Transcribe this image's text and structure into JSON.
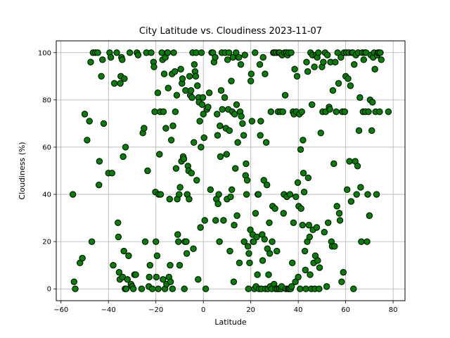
{
  "chart_data": {
    "type": "scatter",
    "title": "City Latitude vs. Cloudiness 2023-11-07",
    "xlabel": "Latitude",
    "ylabel": "Cloudiness (%)",
    "xlim": [
      -62,
      85
    ],
    "ylim": [
      -5,
      105
    ],
    "x_ticks": [
      -60,
      -40,
      -20,
      0,
      20,
      40,
      60,
      80
    ],
    "y_ticks": [
      0,
      20,
      40,
      60,
      80,
      100
    ],
    "grid": true,
    "marker_fill": "#008000",
    "marker_edge": "#000000",
    "points": [
      [
        -55,
        40
      ],
      [
        -54.5,
        3
      ],
      [
        -54,
        0
      ],
      [
        -52,
        11
      ],
      [
        -51,
        13
      ],
      [
        -50,
        74
      ],
      [
        -49,
        63
      ],
      [
        -48,
        71
      ],
      [
        -47.5,
        96
      ],
      [
        -47,
        20
      ],
      [
        -46.5,
        100
      ],
      [
        -45.5,
        100
      ],
      [
        -44.5,
        100
      ],
      [
        -44,
        44
      ],
      [
        -43.8,
        54
      ],
      [
        -43,
        90
      ],
      [
        -42.5,
        97
      ],
      [
        -42,
        70
      ],
      [
        -40,
        49
      ],
      [
        -39.5,
        100
      ],
      [
        -39,
        98
      ],
      [
        -38.5,
        49
      ],
      [
        -38,
        10
      ],
      [
        -37.5,
        87
      ],
      [
        -36.5,
        100
      ],
      [
        -36,
        28
      ],
      [
        -35.8,
        22
      ],
      [
        -35.5,
        7
      ],
      [
        -35.2,
        4
      ],
      [
        -35,
        87
      ],
      [
        -34.8,
        90
      ],
      [
        -34.5,
        98
      ],
      [
        -34.2,
        97
      ],
      [
        -34,
        5
      ],
      [
        -33.8,
        56
      ],
      [
        -33.5,
        16
      ],
      [
        -33.3,
        89
      ],
      [
        -33,
        0
      ],
      [
        -32.8,
        60
      ],
      [
        -32.5,
        0
      ],
      [
        -32,
        4
      ],
      [
        -31.5,
        14
      ],
      [
        -31,
        100
      ],
      [
        -30.5,
        2
      ],
      [
        -30,
        1
      ],
      [
        -29.5,
        0
      ],
      [
        -29,
        6
      ],
      [
        -28.5,
        6
      ],
      [
        -28,
        100
      ],
      [
        -27.5,
        99
      ],
      [
        -26,
        0
      ],
      [
        -25.5,
        66
      ],
      [
        -25,
        68
      ],
      [
        -24.5,
        20
      ],
      [
        -24,
        100
      ],
      [
        -23.5,
        50
      ],
      [
        -23,
        1
      ],
      [
        -22.8,
        5
      ],
      [
        -22.5,
        10
      ],
      [
        -22,
        100
      ],
      [
        -21.5,
        0
      ],
      [
        -21,
        96
      ],
      [
        -20.8,
        94
      ],
      [
        -20.5,
        75
      ],
      [
        -20.2,
        41
      ],
      [
        -20,
        20
      ],
      [
        -19.8,
        5
      ],
      [
        -19.5,
        14
      ],
      [
        -19.2,
        83
      ],
      [
        -19,
        0
      ],
      [
        -18.8,
        40
      ],
      [
        -18.5,
        57
      ],
      [
        -18.2,
        75
      ],
      [
        -18,
        40
      ],
      [
        -17.5,
        100
      ],
      [
        -17.2,
        97
      ],
      [
        -17,
        4
      ],
      [
        -16.8,
        75
      ],
      [
        -16.5,
        91
      ],
      [
        -16.2,
        0
      ],
      [
        -16,
        98
      ],
      [
        -15.8,
        68
      ],
      [
        -15.5,
        2
      ],
      [
        -15.2,
        100
      ],
      [
        -15,
        100
      ],
      [
        -14.8,
        85
      ],
      [
        -14.5,
        5
      ],
      [
        -14.2,
        38
      ],
      [
        -14,
        10
      ],
      [
        -13.8,
        3
      ],
      [
        -13.5,
        63
      ],
      [
        -13.2,
        91
      ],
      [
        -13,
        0
      ],
      [
        -12.8,
        69
      ],
      [
        -12.5,
        100
      ],
      [
        -12,
        92
      ],
      [
        -11.8,
        75
      ],
      [
        -11.5,
        51
      ],
      [
        -11.2,
        82
      ],
      [
        -11,
        38
      ],
      [
        -10.8,
        23
      ],
      [
        -10.5,
        20
      ],
      [
        -10.2,
        40
      ],
      [
        -10,
        10
      ],
      [
        -9.8,
        43
      ],
      [
        -9.5,
        93
      ],
      [
        -9.2,
        54
      ],
      [
        -9,
        87
      ],
      [
        -8.8,
        89
      ],
      [
        -8.5,
        56
      ],
      [
        -8.2,
        55
      ],
      [
        -8,
        0
      ],
      [
        -7.8,
        20
      ],
      [
        -7.5,
        84
      ],
      [
        -7.2,
        20
      ],
      [
        -7,
        15
      ],
      [
        -6.8,
        40
      ],
      [
        -6.5,
        52
      ],
      [
        -6.2,
        50
      ],
      [
        -6,
        38
      ],
      [
        -5.8,
        90
      ],
      [
        -5.5,
        82
      ],
      [
        -5.2,
        84
      ],
      [
        -5,
        49
      ],
      [
        -4.8,
        81
      ],
      [
        -4.5,
        100
      ],
      [
        -4.2,
        17
      ],
      [
        -4,
        62
      ],
      [
        -3.8,
        95
      ],
      [
        -3.5,
        92
      ],
      [
        -3.2,
        90
      ],
      [
        -3,
        100
      ],
      [
        -2.8,
        46
      ],
      [
        -2.5,
        86
      ],
      [
        -2.2,
        4
      ],
      [
        -2,
        81
      ],
      [
        -1.8,
        79
      ],
      [
        -1.5,
        71
      ],
      [
        -1.2,
        26
      ],
      [
        -1,
        60
      ],
      [
        -0.8,
        100
      ],
      [
        -0.5,
        78
      ],
      [
        -0.2,
        81
      ],
      [
        0,
        74
      ],
      [
        0.3,
        64
      ],
      [
        0.6,
        29
      ],
      [
        1,
        0
      ],
      [
        1.5,
        76
      ],
      [
        2,
        77
      ],
      [
        2.5,
        83
      ],
      [
        3,
        42
      ],
      [
        3.5,
        100
      ],
      [
        4,
        100
      ],
      [
        4.5,
        96
      ],
      [
        5,
        98
      ],
      [
        5.2,
        29
      ],
      [
        5.5,
        38
      ],
      [
        5.8,
        74
      ],
      [
        6,
        65
      ],
      [
        6.2,
        36
      ],
      [
        6.5,
        40
      ],
      [
        6.8,
        20
      ],
      [
        7,
        69
      ],
      [
        7.2,
        56
      ],
      [
        7.5,
        84
      ],
      [
        7.8,
        100
      ],
      [
        8,
        76
      ],
      [
        8.5,
        29
      ],
      [
        9,
        81
      ],
      [
        9.2,
        100
      ],
      [
        9.5,
        68
      ],
      [
        9.8,
        57
      ],
      [
        10,
        38
      ],
      [
        10.2,
        97
      ],
      [
        10.5,
        76
      ],
      [
        10.8,
        100
      ],
      [
        11,
        67
      ],
      [
        11.2,
        16
      ],
      [
        11.5,
        39
      ],
      [
        11.8,
        88
      ],
      [
        12,
        42
      ],
      [
        12.2,
        75
      ],
      [
        12.5,
        98
      ],
      [
        12.8,
        3
      ],
      [
        13,
        27
      ],
      [
        13.2,
        74
      ],
      [
        13.5,
        51
      ],
      [
        13.8,
        100
      ],
      [
        14,
        78
      ],
      [
        14.2,
        31
      ],
      [
        14.5,
        62
      ],
      [
        14.8,
        98
      ],
      [
        15,
        98
      ],
      [
        15.2,
        11
      ],
      [
        15.5,
        75
      ],
      [
        15.8,
        95
      ],
      [
        16,
        73
      ],
      [
        16.5,
        70
      ],
      [
        17,
        65
      ],
      [
        17.2,
        20
      ],
      [
        17.5,
        99
      ],
      [
        17.8,
        48
      ],
      [
        18,
        53
      ],
      [
        18.2,
        40
      ],
      [
        18.5,
        46
      ],
      [
        18.8,
        18
      ],
      [
        19,
        0
      ],
      [
        19.2,
        15
      ],
      [
        19.5,
        11
      ],
      [
        19.8,
        25
      ],
      [
        20,
        88
      ],
      [
        20.2,
        91
      ],
      [
        20.5,
        71
      ],
      [
        20.8,
        23
      ],
      [
        21,
        20
      ],
      [
        21.2,
        20
      ],
      [
        21.5,
        0
      ],
      [
        21.8,
        100
      ],
      [
        22,
        32
      ],
      [
        22.2,
        1
      ],
      [
        22.5,
        22
      ],
      [
        22.8,
        6
      ],
      [
        23,
        40
      ],
      [
        23.2,
        40
      ],
      [
        23.5,
        0
      ],
      [
        23.8,
        95
      ],
      [
        24,
        65
      ],
      [
        24.2,
        71
      ],
      [
        24.5,
        0
      ],
      [
        24.8,
        23
      ],
      [
        25,
        12
      ],
      [
        25.2,
        98
      ],
      [
        25.5,
        46
      ],
      [
        25.8,
        21
      ],
      [
        26,
        91
      ],
      [
        26.2,
        0
      ],
      [
        26.5,
        62
      ],
      [
        26.8,
        44
      ],
      [
        27,
        17
      ],
      [
        27.2,
        0
      ],
      [
        27.5,
        6
      ],
      [
        27.8,
        28
      ],
      [
        28,
        15
      ],
      [
        28.2,
        1
      ],
      [
        28.5,
        75
      ],
      [
        28.8,
        0
      ],
      [
        29,
        20
      ],
      [
        29.2,
        35
      ],
      [
        29.5,
        100
      ],
      [
        29.8,
        2
      ],
      [
        30,
        100
      ],
      [
        30.2,
        34
      ],
      [
        30.5,
        0
      ],
      [
        30.8,
        100
      ],
      [
        31,
        16
      ],
      [
        31.2,
        0
      ],
      [
        31.5,
        75
      ],
      [
        31.8,
        100
      ],
      [
        32,
        0
      ],
      [
        32.2,
        100
      ],
      [
        32.5,
        75
      ],
      [
        32.8,
        0
      ],
      [
        33,
        1
      ],
      [
        33.2,
        99
      ],
      [
        33.5,
        75
      ],
      [
        33.8,
        32
      ],
      [
        34,
        40
      ],
      [
        34.2,
        100
      ],
      [
        34.5,
        82
      ],
      [
        34.8,
        0
      ],
      [
        35,
        100
      ],
      [
        35.2,
        39
      ],
      [
        35.5,
        99
      ],
      [
        35.8,
        0
      ],
      [
        36,
        100
      ],
      [
        36.2,
        0
      ],
      [
        36.5,
        40
      ],
      [
        36.8,
        0
      ],
      [
        37,
        100
      ],
      [
        37.2,
        1
      ],
      [
        37.5,
        11
      ],
      [
        37.8,
        75
      ],
      [
        38,
        28
      ],
      [
        38.2,
        74
      ],
      [
        38.5,
        93
      ],
      [
        38.8,
        3
      ],
      [
        39,
        39
      ],
      [
        39.2,
        75
      ],
      [
        39.5,
        90
      ],
      [
        39.8,
        45
      ],
      [
        40,
        5
      ],
      [
        40.2,
        35
      ],
      [
        40.5,
        74
      ],
      [
        40.8,
        0
      ],
      [
        41,
        59
      ],
      [
        41.2,
        34
      ],
      [
        41.5,
        75
      ],
      [
        41.8,
        27
      ],
      [
        42,
        63
      ],
      [
        42.2,
        49
      ],
      [
        42.5,
        41
      ],
      [
        42.8,
        16
      ],
      [
        43,
        8
      ],
      [
        43.2,
        0
      ],
      [
        43.5,
        96
      ],
      [
        43.8,
        20
      ],
      [
        44,
        92
      ],
      [
        44.2,
        47
      ],
      [
        44.5,
        27
      ],
      [
        44.8,
        22
      ],
      [
        45,
        6
      ],
      [
        45.2,
        100
      ],
      [
        45.5,
        0
      ],
      [
        45.8,
        78
      ],
      [
        46,
        99
      ],
      [
        46.2,
        25
      ],
      [
        46.5,
        11
      ],
      [
        46.8,
        94
      ],
      [
        47,
        0
      ],
      [
        47.2,
        14
      ],
      [
        47.5,
        99
      ],
      [
        47.8,
        26
      ],
      [
        48,
        98
      ],
      [
        48.2,
        12
      ],
      [
        48.5,
        100
      ],
      [
        48.8,
        0
      ],
      [
        49,
        9
      ],
      [
        49.5,
        66
      ],
      [
        50,
        94
      ],
      [
        50.3,
        75
      ],
      [
        50.6,
        96
      ],
      [
        51,
        24
      ],
      [
        51.3,
        100
      ],
      [
        51.6,
        75
      ],
      [
        52,
        1
      ],
      [
        52.3,
        99
      ],
      [
        52.6,
        28
      ],
      [
        53,
        77
      ],
      [
        53.3,
        76
      ],
      [
        53.6,
        96
      ],
      [
        54,
        20
      ],
      [
        54.3,
        18
      ],
      [
        54.6,
        84
      ],
      [
        55,
        53
      ],
      [
        55.3,
        18
      ],
      [
        55.6,
        96
      ],
      [
        56,
        75
      ],
      [
        56.3,
        35
      ],
      [
        56.6,
        100
      ],
      [
        57,
        87
      ],
      [
        57.3,
        32
      ],
      [
        57.6,
        29
      ],
      [
        58,
        98
      ],
      [
        58.3,
        3
      ],
      [
        58.6,
        75
      ],
      [
        59,
        7
      ],
      [
        59.3,
        100
      ],
      [
        59.6,
        75
      ],
      [
        60,
        90
      ],
      [
        60.3,
        100
      ],
      [
        60.6,
        42
      ],
      [
        61,
        89
      ],
      [
        61.3,
        100
      ],
      [
        61.6,
        54
      ],
      [
        62,
        86
      ],
      [
        62.3,
        37
      ],
      [
        62.6,
        100
      ],
      [
        63,
        100
      ],
      [
        63.3,
        0
      ],
      [
        63.6,
        95
      ],
      [
        64,
        54
      ],
      [
        64.3,
        99
      ],
      [
        64.6,
        40
      ],
      [
        65,
        52
      ],
      [
        65.3,
        100
      ],
      [
        65.6,
        67
      ],
      [
        66,
        81
      ],
      [
        66.3,
        43
      ],
      [
        66.6,
        20
      ],
      [
        67,
        100
      ],
      [
        67.3,
        75
      ],
      [
        67.6,
        97
      ],
      [
        68,
        100
      ],
      [
        68.3,
        75
      ],
      [
        68.6,
        100
      ],
      [
        69,
        20
      ],
      [
        69.3,
        40
      ],
      [
        69.6,
        75
      ],
      [
        70,
        31
      ],
      [
        70.3,
        80
      ],
      [
        70.6,
        99
      ],
      [
        71,
        67
      ],
      [
        71.3,
        79
      ],
      [
        71.6,
        98
      ],
      [
        72,
        100
      ],
      [
        72.3,
        93
      ],
      [
        72.6,
        75
      ],
      [
        73,
        40
      ],
      [
        73.3,
        99
      ],
      [
        73.6,
        100
      ],
      [
        74,
        100
      ],
      [
        74.3,
        75
      ],
      [
        74.6,
        100
      ],
      [
        75,
        97
      ],
      [
        78,
        75
      ]
    ]
  }
}
